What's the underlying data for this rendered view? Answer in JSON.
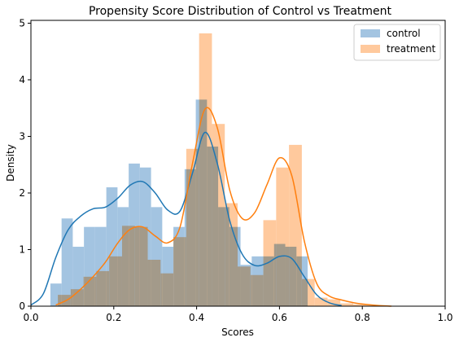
{
  "chart_data": {
    "type": "bar",
    "title": "Propensity Score Distribution of Control vs Treatment",
    "xlabel": "Scores",
    "ylabel": "Density",
    "xlim": [
      0.0,
      1.0
    ],
    "ylim": [
      0,
      5.05
    ],
    "xticks": [
      "0.0",
      "0.2",
      "0.4",
      "0.6",
      "0.8",
      "1.0"
    ],
    "yticks": [
      "0",
      "1",
      "2",
      "3",
      "4",
      "5"
    ],
    "grid": false,
    "legend_position": "top-right",
    "series": [
      {
        "name": "control",
        "kind": "histogram",
        "color": "#1f77b4",
        "fill_color": "#a3c4e1",
        "bin_edges": [
          0.047,
          0.074,
          0.101,
          0.128,
          0.155,
          0.182,
          0.209,
          0.236,
          0.263,
          0.29,
          0.317,
          0.344,
          0.371,
          0.398,
          0.425,
          0.452,
          0.479,
          0.506,
          0.533,
          0.56,
          0.587,
          0.614,
          0.641,
          0.668
        ],
        "values": [
          0.4,
          1.55,
          1.05,
          1.4,
          1.4,
          2.1,
          1.75,
          2.52,
          2.45,
          1.75,
          1.05,
          1.4,
          2.42,
          3.65,
          2.82,
          1.75,
          1.4,
          0.73,
          0.88,
          0.88,
          1.1,
          1.05,
          0.88
        ],
        "kde": {
          "x": [
            0.0,
            0.03,
            0.06,
            0.09,
            0.12,
            0.15,
            0.18,
            0.21,
            0.24,
            0.27,
            0.3,
            0.33,
            0.36,
            0.39,
            0.42,
            0.45,
            0.48,
            0.51,
            0.54,
            0.57,
            0.6,
            0.63,
            0.66,
            0.69,
            0.72,
            0.75
          ],
          "y": [
            0.02,
            0.22,
            0.86,
            1.35,
            1.59,
            1.72,
            1.75,
            1.91,
            2.14,
            2.2,
            2.0,
            1.7,
            1.68,
            2.35,
            3.07,
            2.52,
            1.51,
            0.92,
            0.72,
            0.76,
            0.88,
            0.84,
            0.52,
            0.2,
            0.06,
            0.01
          ]
        }
      },
      {
        "name": "treatment",
        "kind": "histogram",
        "color": "#ff7f0e",
        "fill_color": "#ffc99d",
        "bin_edges": [
          0.065,
          0.096,
          0.127,
          0.158,
          0.189,
          0.22,
          0.251,
          0.282,
          0.313,
          0.344,
          0.375,
          0.406,
          0.437,
          0.468,
          0.499,
          0.53,
          0.561,
          0.592,
          0.623,
          0.654,
          0.685,
          0.716,
          0.747,
          0.778,
          0.809,
          0.84,
          0.871
        ],
        "values": [
          0.2,
          0.3,
          0.52,
          0.62,
          0.88,
          1.42,
          1.4,
          0.82,
          0.58,
          1.22,
          2.78,
          4.82,
          3.22,
          1.82,
          0.7,
          0.55,
          1.52,
          2.45,
          2.85,
          0.48,
          0.15,
          0.12,
          0.05,
          0.03,
          0.02,
          0.01
        ],
        "kde": {
          "x": [
            0.06,
            0.09,
            0.12,
            0.15,
            0.18,
            0.21,
            0.24,
            0.27,
            0.3,
            0.33,
            0.36,
            0.39,
            0.42,
            0.45,
            0.48,
            0.51,
            0.54,
            0.57,
            0.6,
            0.63,
            0.66,
            0.69,
            0.72,
            0.75,
            0.78,
            0.81,
            0.84,
            0.87
          ],
          "y": [
            0.02,
            0.12,
            0.3,
            0.52,
            0.78,
            1.12,
            1.36,
            1.4,
            1.24,
            1.12,
            1.4,
            2.52,
            3.48,
            3.15,
            2.05,
            1.55,
            1.65,
            2.15,
            2.62,
            2.3,
            1.15,
            0.4,
            0.18,
            0.11,
            0.06,
            0.03,
            0.01,
            0.0
          ]
        }
      }
    ]
  }
}
